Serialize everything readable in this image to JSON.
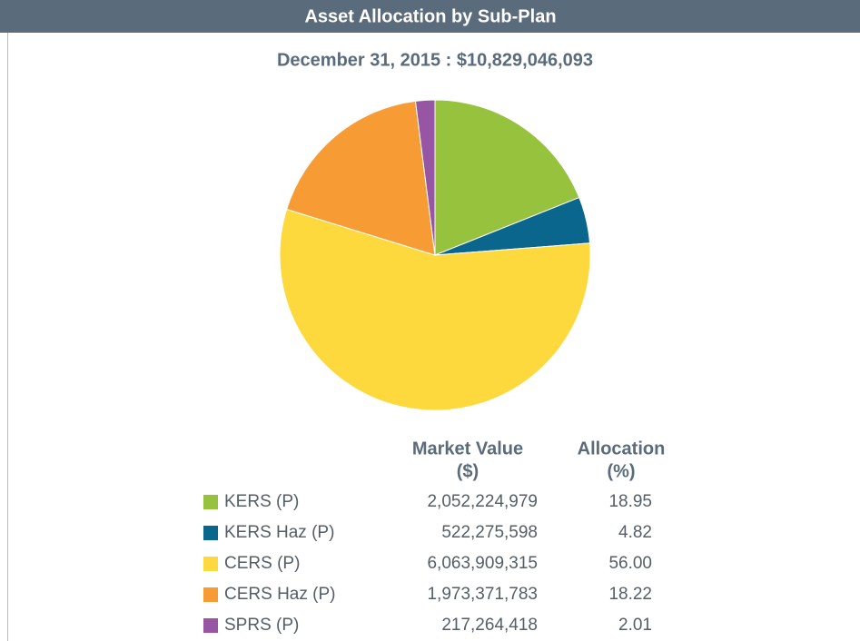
{
  "chart_data": {
    "type": "pie",
    "title": "Asset Allocation by Sub-Plan",
    "subtitle": "December 31, 2015 : $10,829,046,093",
    "categories": [
      "KERS (P)",
      "KERS Haz (P)",
      "CERS (P)",
      "CERS Haz (P)",
      "SPRS (P)"
    ],
    "values": [
      18.95,
      4.82,
      56.0,
      18.22,
      2.01
    ],
    "value_labels": [
      "18.95",
      "4.82",
      "56.00",
      "18.22",
      "2.01"
    ],
    "colors": [
      "#97c23d",
      "#0a668c",
      "#fdd93e",
      "#f79b34",
      "#9656a3"
    ],
    "market_values": [
      2052224979,
      522275598,
      6063909315,
      1973371783,
      217264418
    ],
    "market_value_labels": [
      "2,052,224,979",
      "522,275,598",
      "6,063,909,315",
      "1,973,371,783",
      "217,264,418"
    ],
    "column_headers": [
      [
        "Market Value",
        "($)"
      ],
      [
        "Allocation",
        "(%)"
      ]
    ]
  }
}
